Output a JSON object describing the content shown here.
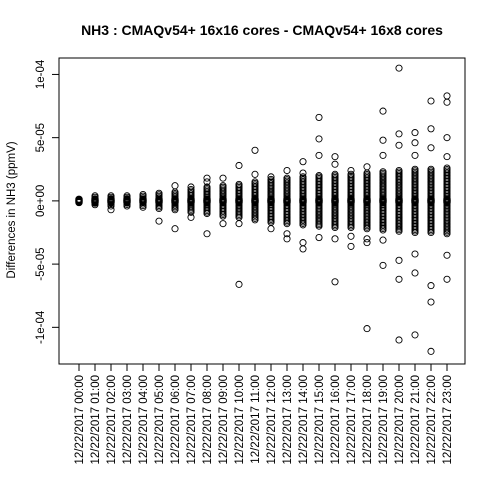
{
  "chart_data": {
    "type": "scatter",
    "title": "NH3 : CMAQv54+ 16x16 cores - CMAQv54+ 16x8 cores",
    "xlabel": "",
    "ylabel": "Differences in NH3 (ppmV)",
    "ylim": [
      -0.000129,
      0.000113
    ],
    "y_ticks": [
      {
        "value": -0.0001,
        "label": "-1e-04"
      },
      {
        "value": -5e-05,
        "label": "-5e-05"
      },
      {
        "value": 0,
        "label": "0e+00"
      },
      {
        "value": 5e-05,
        "label": "5e-05"
      },
      {
        "value": 0.0001,
        "label": "1e-04"
      }
    ],
    "categories": [
      "12/22/2017 00:00",
      "12/22/2017 01:00",
      "12/22/2017 02:00",
      "12/22/2017 03:00",
      "12/22/2017 04:00",
      "12/22/2017 05:00",
      "12/22/2017 06:00",
      "12/22/2017 07:00",
      "12/22/2017 08:00",
      "12/22/2017 09:00",
      "12/22/2017 10:00",
      "12/22/2017 11:00",
      "12/22/2017 12:00",
      "12/22/2017 13:00",
      "12/22/2017 14:00",
      "12/22/2017 15:00",
      "12/22/2017 16:00",
      "12/22/2017 17:00",
      "12/22/2017 18:00",
      "12/22/2017 19:00",
      "12/22/2017 20:00",
      "12/22/2017 21:00",
      "12/22/2017 22:00",
      "12/22/2017 23:00"
    ],
    "band_max": [
      1e-06,
      4e-06,
      4e-06,
      4e-06,
      5e-06,
      6e-06,
      7e-06,
      9e-06,
      1.1e-05,
      1.2e-05,
      1.3e-05,
      1.5e-05,
      1.7e-05,
      1.8e-05,
      1.9e-05,
      2e-05,
      2.1e-05,
      2.1e-05,
      2.2e-05,
      2.3e-05,
      2.4e-05,
      2.5e-05,
      2.5e-05,
      2.6e-05
    ],
    "band_min": [
      -1e-06,
      -3e-06,
      -4e-06,
      -4e-06,
      -5e-06,
      -6e-06,
      -7e-06,
      -9e-06,
      -1e-05,
      -1.2e-05,
      -1.3e-05,
      -1.5e-05,
      -1.7e-05,
      -1.8e-05,
      -1.9e-05,
      -2e-05,
      -2.1e-05,
      -2.1e-05,
      -2.2e-05,
      -2.3e-05,
      -2.4e-05,
      -2.5e-05,
      -2.5e-05,
      -2.6e-05
    ],
    "outliers": [
      [],
      [],
      [
        -7e-06
      ],
      [],
      [],
      [
        -1.6e-05
      ],
      [
        -2.2e-05,
        1.2e-05
      ],
      [
        1.1e-05,
        -1.3e-05
      ],
      [
        -2.6e-05,
        1.8e-05,
        1.5e-05
      ],
      [
        1.8e-05,
        -1.8e-05
      ],
      [
        -6.6e-05,
        2.8e-05,
        -1.8e-05
      ],
      [
        4e-05,
        2.1e-05
      ],
      [
        1.9e-05,
        -2.2e-05
      ],
      [
        -3e-05,
        2.4e-05,
        -2.6e-05
      ],
      [
        3.1e-05,
        -3.8e-05,
        -3.3e-05,
        2.2e-05
      ],
      [
        6.6e-05,
        4.9e-05,
        3.6e-05,
        -2.9e-05
      ],
      [
        -6.4e-05,
        3.5e-05,
        2.9e-05,
        -3e-05
      ],
      [
        2.4e-05,
        -3.6e-05,
        -2.8e-05
      ],
      [
        -0.000101,
        2.7e-05,
        -3e-05,
        -3.3e-05
      ],
      [
        7.1e-05,
        4.8e-05,
        3.6e-05,
        -5.1e-05,
        -3.1e-05
      ],
      [
        0.000105,
        -0.00011,
        5.3e-05,
        4.4e-05,
        -6.2e-05,
        -4.7e-05
      ],
      [
        5.4e-05,
        4.6e-05,
        -0.000106,
        -5.7e-05,
        -4.2e-05,
        3.6e-05
      ],
      [
        7.9e-05,
        5.7e-05,
        -0.000119,
        -8e-05,
        -6.7e-05,
        4.2e-05
      ],
      [
        8.3e-05,
        7.8e-05,
        5e-05,
        -6.2e-05,
        -4.3e-05,
        3.5e-05
      ]
    ],
    "grid": false,
    "legend": "none"
  }
}
